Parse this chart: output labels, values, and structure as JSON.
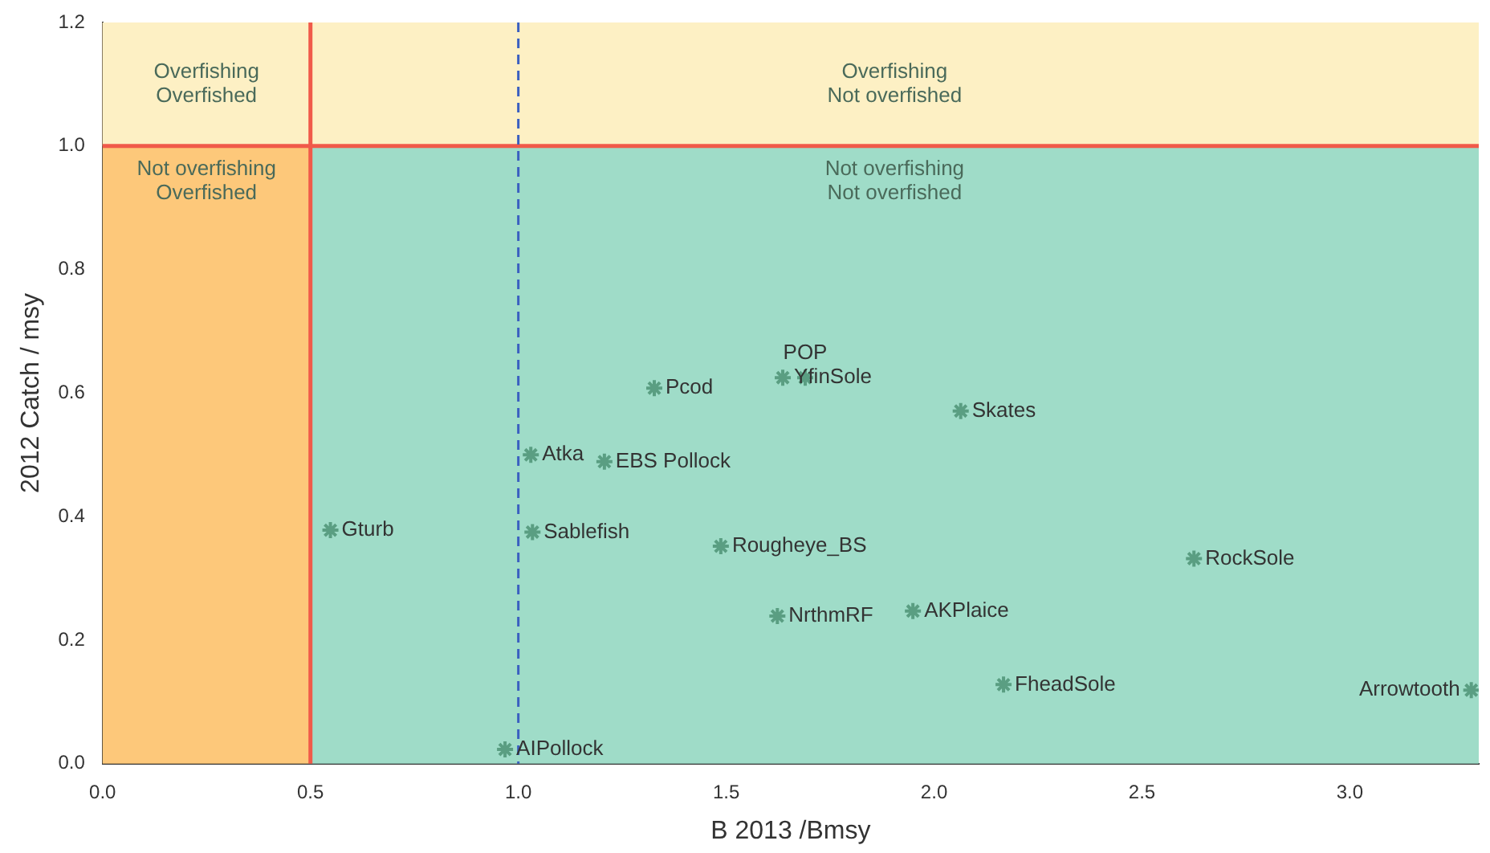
{
  "chart_data": {
    "type": "scatter",
    "xlabel": "B 2013 /Bmsy",
    "ylabel": "2012 Catch / msy",
    "x": [
      0.548,
      1.034,
      0.968,
      1.207,
      1.03,
      1.327,
      1.636,
      1.69,
      2.064,
      1.487,
      1.623,
      1.949,
      2.625,
      2.167,
      3.292
    ],
    "series": [
      {
        "color": "#5a9e82",
        "values": [
          0.378,
          0.375,
          0.023,
          0.489,
          0.5,
          0.608,
          0.625,
          0.625,
          0.571,
          0.352,
          0.239,
          0.247,
          0.332,
          0.128,
          0.119
        ]
      }
    ],
    "marker": "cross",
    "grid": false,
    "legend": false,
    "xlim": [
      0,
      3.31
    ],
    "ylim": [
      0,
      1.2
    ],
    "xticks": [
      {
        "value": 0,
        "label": "0.0"
      },
      {
        "value": 0.5,
        "label": "0.5"
      },
      {
        "value": 1,
        "label": "1.0"
      },
      {
        "value": 1.5,
        "label": "1.5"
      },
      {
        "value": 2,
        "label": "2.0"
      },
      {
        "value": 2.5,
        "label": "2.5"
      },
      {
        "value": 3,
        "label": "3.0"
      }
    ],
    "yticks": [
      {
        "value": 0,
        "label": "0.0"
      },
      {
        "value": 0.2,
        "label": "0.2"
      },
      {
        "value": 0.4,
        "label": "0.4"
      },
      {
        "value": 0.6,
        "label": "0.6"
      },
      {
        "value": 0.8,
        "label": "0.8"
      },
      {
        "value": 1,
        "label": "1.0"
      },
      {
        "value": 1.2,
        "label": "1.2"
      }
    ],
    "bands": [
      {
        "axis": "x",
        "from": 0.5,
        "to": 3.31,
        "color": "#9fdcc8"
      },
      {
        "axis": "x",
        "from": 0,
        "to": 0.5,
        "color": "#fdc87a"
      },
      {
        "axis": "y",
        "from": 1,
        "to": 1.2,
        "color": "#fdf0c4"
      }
    ],
    "ref_lines": [
      {
        "axis": "x",
        "value": 0.5,
        "color": "#f05a4a",
        "line_style": "solid"
      },
      {
        "axis": "y",
        "value": 1,
        "color": "#f05a4a",
        "line_style": "solid"
      },
      {
        "axis": "x",
        "value": 1,
        "color": "#3a5fc0",
        "line_style": "dashed"
      }
    ],
    "annotations": [
      {
        "text": "Gturb",
        "x": 0.548,
        "y": 0.378
      },
      {
        "text": "Sablefish",
        "x": 1.034,
        "y": 0.375
      },
      {
        "text": "AIPollock",
        "x": 0.968,
        "y": 0.023
      },
      {
        "text": "EBS Pollock",
        "x": 1.207,
        "y": 0.489
      },
      {
        "text": "Atka",
        "x": 1.03,
        "y": 0.5
      },
      {
        "text": "Pcod",
        "x": 1.327,
        "y": 0.608
      },
      {
        "text": "YfinSole",
        "x": 1.636,
        "y": 0.625
      },
      {
        "text": "POP",
        "x": 1.69,
        "y": 0.625
      },
      {
        "text": "Skates",
        "x": 2.064,
        "y": 0.571
      },
      {
        "text": "Rougheye_BS",
        "x": 1.487,
        "y": 0.352
      },
      {
        "text": "NrthmRF",
        "x": 1.623,
        "y": 0.239
      },
      {
        "text": "AKPlaice",
        "x": 1.949,
        "y": 0.247
      },
      {
        "text": "RockSole",
        "x": 2.625,
        "y": 0.332
      },
      {
        "text": "FheadSole",
        "x": 2.167,
        "y": 0.128
      },
      {
        "text": "Arrowtooth",
        "x": 3.292,
        "y": 0.119
      },
      "Overfishing\nOverfished",
      "Overfishing\nNot overfished",
      "Not overfishing\nOverfished",
      "Not overfishing\nNot overfished"
    ]
  }
}
